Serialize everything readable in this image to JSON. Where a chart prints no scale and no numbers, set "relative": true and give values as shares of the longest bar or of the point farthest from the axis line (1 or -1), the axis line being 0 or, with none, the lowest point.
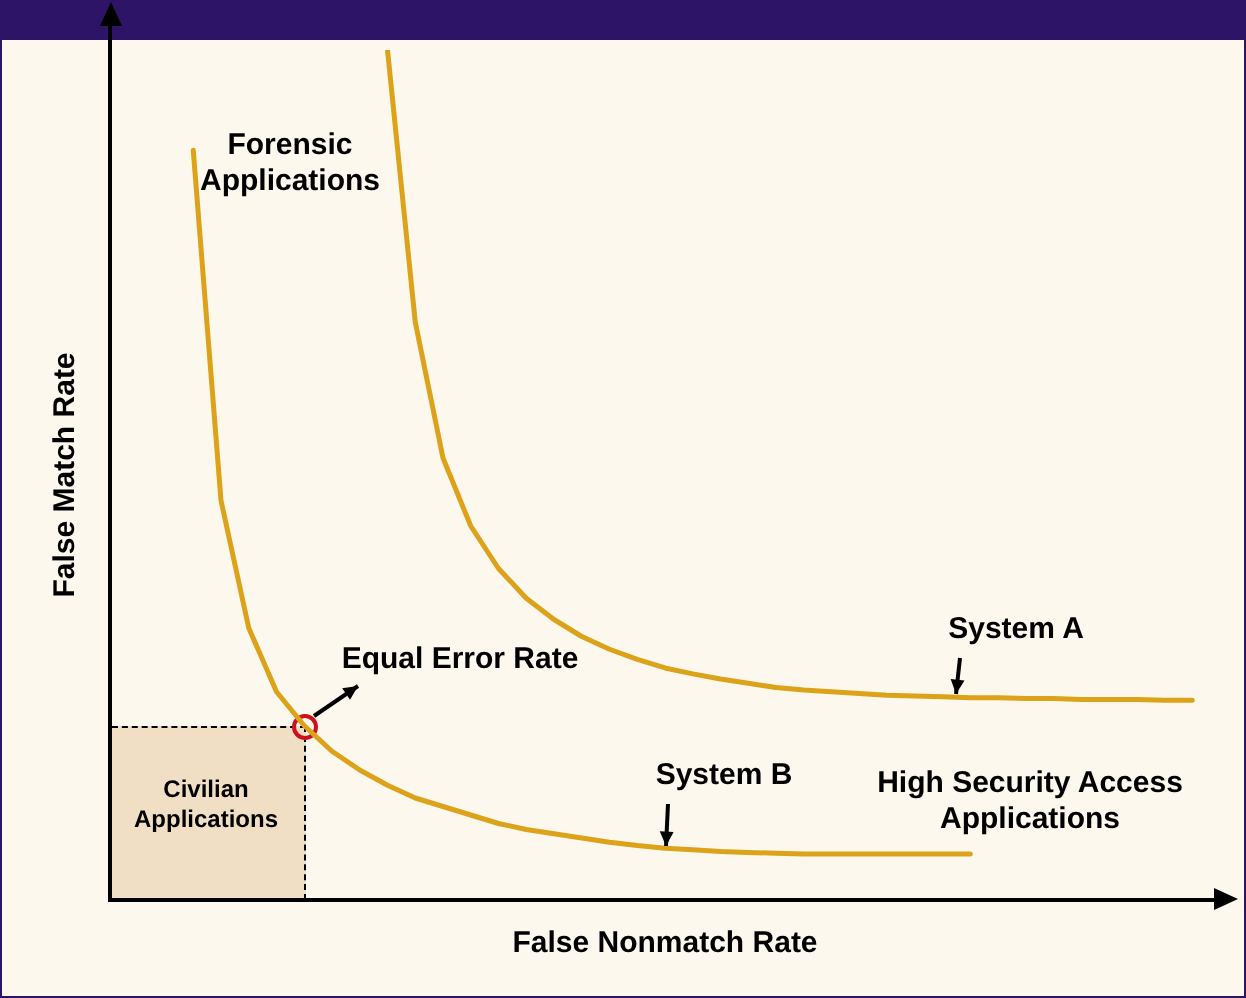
{
  "chart_data": {
    "type": "line",
    "relative": true,
    "xlabel": "False Nonmatch Rate",
    "ylabel": "False Match Rate",
    "legend": false,
    "marker": "none",
    "line_style": "solid",
    "categories": [
      null,
      null,
      null,
      null,
      null,
      null,
      null,
      null,
      null,
      null,
      null,
      null,
      null,
      null,
      null,
      null,
      null,
      null,
      null,
      null,
      null,
      null,
      null,
      null,
      null,
      null,
      null,
      null,
      null,
      null,
      null,
      null,
      null,
      null,
      null,
      null,
      null,
      null,
      null,
      null,
      null
    ],
    "annotations": [
      "Equal Error Rate",
      "Forensic Applications",
      "High Security Access Applications",
      "Civilian Applications"
    ],
    "series": [
      {
        "name": "System A",
        "color": "#dba21a",
        "values": [
          null,
          null,
          null,
          null,
          null,
          null,
          null,
          null,
          null,
          null,
          1,
          0.68,
          0.52,
          0.44,
          0.39,
          0.355,
          0.33,
          0.31,
          0.295,
          0.283,
          0.273,
          0.266,
          0.26,
          0.255,
          0.25,
          0.247,
          0.245,
          0.243,
          0.241,
          0.24,
          0.239,
          0.238,
          0.238,
          0.237,
          0.237,
          0.236,
          0.236,
          0.236,
          0.235,
          0.235,
          null
        ]
      },
      {
        "name": "System B",
        "color": "#dba21a",
        "values": [
          null,
          null,
          null,
          0.882,
          0.47,
          0.32,
          0.245,
          0.205,
          0.175,
          0.153,
          0.135,
          0.12,
          0.11,
          0.1,
          0.09,
          0.083,
          0.078,
          0.073,
          0.068,
          0.064,
          0.061,
          0.059,
          0.057,
          0.056,
          0.055,
          0.054,
          0.054,
          0.054,
          0.054,
          0.054,
          0.054,
          0.054,
          null,
          null,
          null,
          null,
          null,
          null,
          null,
          null,
          null
        ]
      }
    ]
  }
}
